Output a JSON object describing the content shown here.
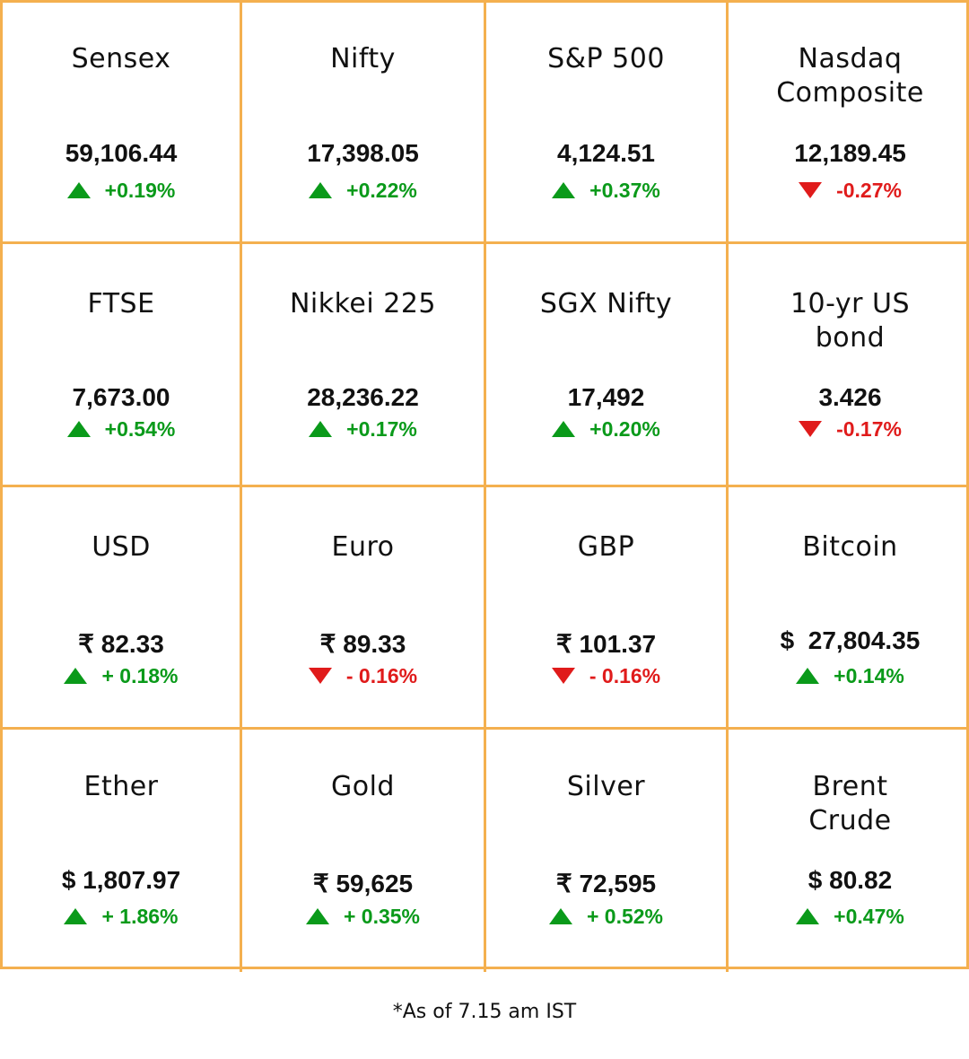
{
  "tiles": [
    {
      "name": "Sensex",
      "value": "59,106.44",
      "change": "+0.19%",
      "direction": "up"
    },
    {
      "name": "Nifty",
      "value": "17,398.05",
      "change": "+0.22%",
      "direction": "up"
    },
    {
      "name": "S&P 500",
      "value": "4,124.51",
      "change": "+0.37%",
      "direction": "up"
    },
    {
      "name": "Nasdaq\nComposite",
      "value": "12,189.45",
      "change": "-0.27%",
      "direction": "down"
    },
    {
      "name": "FTSE",
      "value": "7,673.00",
      "change": "+0.54%",
      "direction": "up"
    },
    {
      "name": "Nikkei 225",
      "value": "28,236.22",
      "change": "+0.17%",
      "direction": "up"
    },
    {
      "name": "SGX Nifty",
      "value": "17,492",
      "change": "+0.20%",
      "direction": "up"
    },
    {
      "name": "10-yr US\nbond",
      "value": "3.426",
      "change": "-0.17%",
      "direction": "down"
    },
    {
      "name": "USD",
      "value": "₹ 82.33",
      "change": "+ 0.18%",
      "direction": "up"
    },
    {
      "name": "Euro",
      "value": "₹ 89.33",
      "change": "- 0.16%",
      "direction": "down"
    },
    {
      "name": "GBP",
      "value": "₹ 101.37",
      "change": "- 0.16%",
      "direction": "down"
    },
    {
      "name": "Bitcoin",
      "value": "$  27,804.35",
      "change": "+0.14%",
      "direction": "up"
    },
    {
      "name": "Ether",
      "value": "$ 1,807.97",
      "change": "+ 1.86%",
      "direction": "up"
    },
    {
      "name": "Gold",
      "value": "₹ 59,625",
      "change": "+ 0.35%",
      "direction": "up"
    },
    {
      "name": "Silver",
      "value": "₹ 72,595",
      "change": "+ 0.52%",
      "direction": "up"
    },
    {
      "name": "Brent\nCrude",
      "value": "$ 80.82",
      "change": "+0.47%",
      "direction": "up"
    }
  ],
  "footnote": "*As of 7.15 am IST",
  "colors": {
    "border": "#f4b04f",
    "up": "#0a9a1a",
    "down": "#e01b1b",
    "text": "#111111"
  },
  "icons": {
    "up": "triangle-up-icon",
    "down": "triangle-down-icon"
  }
}
